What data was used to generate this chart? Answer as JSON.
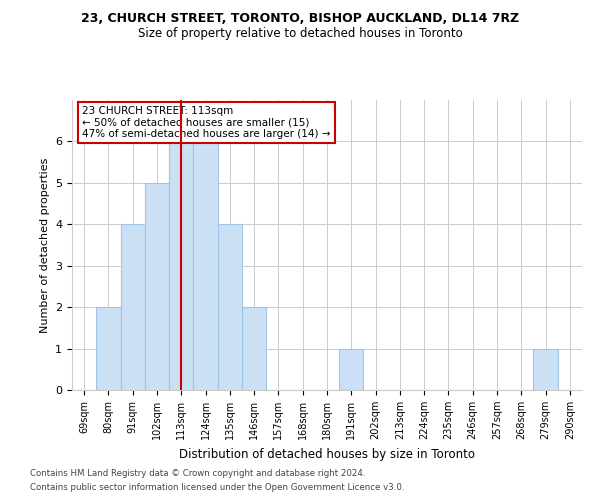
{
  "title_line1": "23, CHURCH STREET, TORONTO, BISHOP AUCKLAND, DL14 7RZ",
  "title_line2": "Size of property relative to detached houses in Toronto",
  "xlabel": "Distribution of detached houses by size in Toronto",
  "ylabel": "Number of detached properties",
  "categories": [
    "69sqm",
    "80sqm",
    "91sqm",
    "102sqm",
    "113sqm",
    "124sqm",
    "135sqm",
    "146sqm",
    "157sqm",
    "168sqm",
    "180sqm",
    "191sqm",
    "202sqm",
    "213sqm",
    "224sqm",
    "235sqm",
    "246sqm",
    "257sqm",
    "268sqm",
    "279sqm",
    "290sqm"
  ],
  "values": [
    0,
    2,
    4,
    5,
    6,
    6,
    4,
    2,
    0,
    0,
    0,
    1,
    0,
    0,
    0,
    0,
    0,
    0,
    0,
    1,
    0
  ],
  "highlight_index": 4,
  "bar_color": "#cce0f5",
  "bar_edgecolor": "#a0c4e8",
  "highlight_line_color": "#cc0000",
  "ylim": [
    0,
    7
  ],
  "yticks": [
    0,
    1,
    2,
    3,
    4,
    5,
    6,
    7
  ],
  "annotation_text": "23 CHURCH STREET: 113sqm\n← 50% of detached houses are smaller (15)\n47% of semi-detached houses are larger (14) →",
  "annotation_box_color": "#cc0000",
  "footer_line1": "Contains HM Land Registry data © Crown copyright and database right 2024.",
  "footer_line2": "Contains public sector information licensed under the Open Government Licence v3.0.",
  "background_color": "#ffffff",
  "grid_color": "#cccccc"
}
